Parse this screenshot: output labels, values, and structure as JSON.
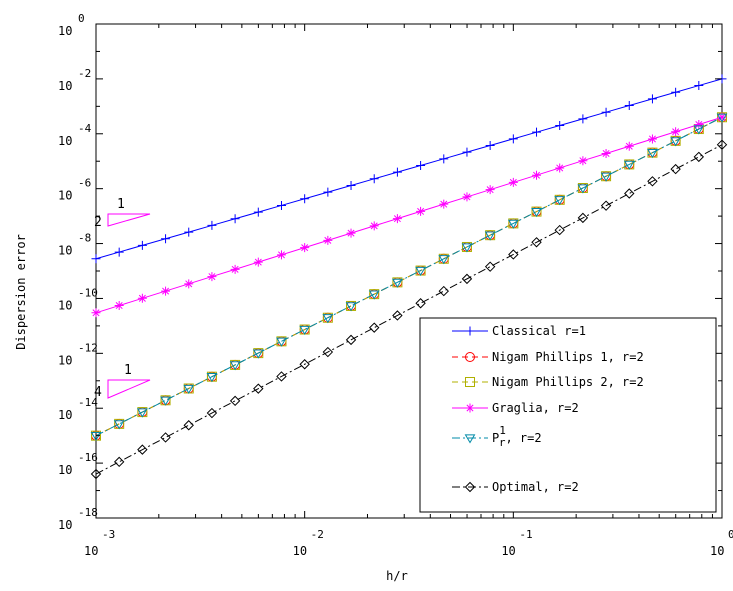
{
  "chart_data": {
    "type": "line",
    "xscale": "log",
    "yscale": "log",
    "xlim": [
      0.001,
      1
    ],
    "ylim": [
      1e-18,
      1
    ],
    "xlabel": "h/r",
    "ylabel": "Dispersion error",
    "grid": false,
    "legend_position": "bottom-right",
    "x_ticks": [
      {
        "base": "10",
        "exp": "-3",
        "value": 0.001
      },
      {
        "base": "10",
        "exp": "-2",
        "value": 0.01
      },
      {
        "base": "10",
        "exp": "-1",
        "value": 0.1
      },
      {
        "base": "10",
        "exp": "0",
        "value": 1
      }
    ],
    "y_ticks": [
      {
        "base": "10",
        "exp": "0",
        "value": 1
      },
      {
        "base": "10",
        "exp": "-2",
        "value": 0.01
      },
      {
        "base": "10",
        "exp": "-4",
        "value": 0.0001
      },
      {
        "base": "10",
        "exp": "-6",
        "value": 1e-06
      },
      {
        "base": "10",
        "exp": "-8",
        "value": 1e-08
      },
      {
        "base": "10",
        "exp": "-10",
        "value": 1e-10
      },
      {
        "base": "10",
        "exp": "-12",
        "value": 1e-12
      },
      {
        "base": "10",
        "exp": "-14",
        "value": 1e-14
      },
      {
        "base": "10",
        "exp": "-16",
        "value": 1e-16
      },
      {
        "base": "10",
        "exp": "-18",
        "value": 1e-18
      }
    ],
    "series": [
      {
        "name": "Classical r=1",
        "color": "#0000ff",
        "marker": "plus",
        "dash": "",
        "x_range": [
          0.001,
          1
        ],
        "y_range": [
          2.8e-09,
          0.01
        ]
      },
      {
        "name": "Nigam Phillips 1, r=2",
        "color": "#ff0000",
        "marker": "circle",
        "dash": "6,4",
        "x_range": [
          0.001,
          1
        ],
        "y_range": [
          1e-15,
          0.0004
        ]
      },
      {
        "name": "Nigam Phillips 2, r=2",
        "color": "#b0b000",
        "marker": "square",
        "dash": "6,4",
        "x_range": [
          0.001,
          1
        ],
        "y_range": [
          1e-15,
          0.0004
        ]
      },
      {
        "name": "Graglia, r=2",
        "color": "#ff00ff",
        "marker": "star",
        "dash": "",
        "x_range": [
          0.001,
          1
        ],
        "y_range": [
          3e-11,
          0.0004
        ]
      },
      {
        "name_prefix": "P",
        "name_sup": "1",
        "name_sub": "r",
        "name_suffix": ", r=2",
        "color": "#008ba8",
        "marker": "triangle-down",
        "dash": "8,3,2,3",
        "x_range": [
          0.001,
          1
        ],
        "y_range": [
          1e-15,
          0.0004
        ]
      },
      {
        "name": "Optimal, r=2",
        "color": "#000000",
        "marker": "diamond",
        "dash": "8,3,2,3",
        "x_range": [
          0.001,
          1
        ],
        "y_range": [
          4e-17,
          4e-05
        ]
      }
    ],
    "slope_triangles": [
      {
        "run_label": "1",
        "rise_label": "2",
        "color": "#ff00ff"
      },
      {
        "run_label": "1",
        "rise_label": "4",
        "color": "#ff00ff"
      }
    ]
  }
}
